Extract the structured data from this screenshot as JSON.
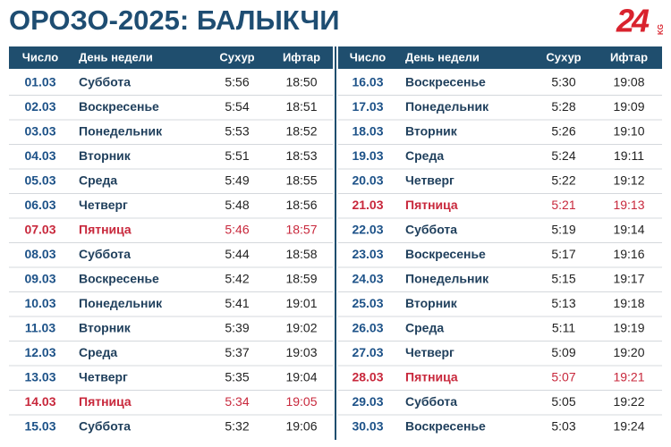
{
  "header": {
    "title": "ОРОЗО-2025: БАЛЫКЧИ",
    "logo": {
      "number": "24",
      "suffix": "KG"
    }
  },
  "tables": [
    {
      "columns": [
        "Число",
        "День недели",
        "Сухур",
        "Ифтар"
      ],
      "rows": [
        {
          "cells": [
            "01.03",
            "Суббота",
            "5:56",
            "18:50"
          ]
        },
        {
          "cells": [
            "02.03",
            "Воскресенье",
            "5:54",
            "18:51"
          ]
        },
        {
          "cells": [
            "03.03",
            "Понедельник",
            "5:53",
            "18:52"
          ]
        },
        {
          "cells": [
            "04.03",
            "Вторник",
            "5:51",
            "18:53"
          ]
        },
        {
          "cells": [
            "05.03",
            "Среда",
            "5:49",
            "18:55"
          ]
        },
        {
          "cells": [
            "06.03",
            "Четверг",
            "5:48",
            "18:56"
          ]
        },
        {
          "cells": [
            "07.03",
            "Пятница",
            "5:46",
            "18:57"
          ],
          "color": "#c8283c"
        },
        {
          "cells": [
            "08.03",
            "Суббота",
            "5:44",
            "18:58"
          ]
        },
        {
          "cells": [
            "09.03",
            "Воскресенье",
            "5:42",
            "18:59"
          ]
        },
        {
          "cells": [
            "10.03",
            "Понедельник",
            "5:41",
            "19:01"
          ]
        },
        {
          "cells": [
            "11.03",
            "Вторник",
            "5:39",
            "19:02"
          ]
        },
        {
          "cells": [
            "12.03",
            "Среда",
            "5:37",
            "19:03"
          ]
        },
        {
          "cells": [
            "13.03",
            "Четверг",
            "5:35",
            "19:04"
          ]
        },
        {
          "cells": [
            "14.03",
            "Пятница",
            "5:34",
            "19:05"
          ],
          "color": "#c8283c"
        },
        {
          "cells": [
            "15.03",
            "Суббота",
            "5:32",
            "19:06"
          ]
        }
      ]
    },
    {
      "columns": [
        "Число",
        "День недели",
        "Сухур",
        "Ифтар"
      ],
      "rows": [
        {
          "cells": [
            "16.03",
            "Воскресенье",
            "5:30",
            "19:08"
          ]
        },
        {
          "cells": [
            "17.03",
            "Понедельник",
            "5:28",
            "19:09"
          ]
        },
        {
          "cells": [
            "18.03",
            "Вторник",
            "5:26",
            "19:10"
          ]
        },
        {
          "cells": [
            "19.03",
            "Среда",
            "5:24",
            "19:11"
          ]
        },
        {
          "cells": [
            "20.03",
            "Четверг",
            "5:22",
            "19:12"
          ]
        },
        {
          "cells": [
            "21.03",
            "Пятница",
            "5:21",
            "19:13"
          ],
          "color": "#c8283c"
        },
        {
          "cells": [
            "22.03",
            "Суббота",
            "5:19",
            "19:14"
          ]
        },
        {
          "cells": [
            "23.03",
            "Воскресенье",
            "5:17",
            "19:16"
          ]
        },
        {
          "cells": [
            "24.03",
            "Понедельник",
            "5:15",
            "19:17"
          ]
        },
        {
          "cells": [
            "25.03",
            "Вторник",
            "5:13",
            "19:18"
          ]
        },
        {
          "cells": [
            "26.03",
            "Среда",
            "5:11",
            "19:19"
          ]
        },
        {
          "cells": [
            "27.03",
            "Четверг",
            "5:09",
            "19:20"
          ]
        },
        {
          "cells": [
            "28.03",
            "Пятница",
            "5:07",
            "19:21"
          ],
          "color": "#c8283c"
        },
        {
          "cells": [
            "29.03",
            "Суббота",
            "5:05",
            "19:22"
          ]
        },
        {
          "cells": [
            "30.03",
            "Воскресенье",
            "5:03",
            "19:24"
          ]
        }
      ]
    }
  ]
}
